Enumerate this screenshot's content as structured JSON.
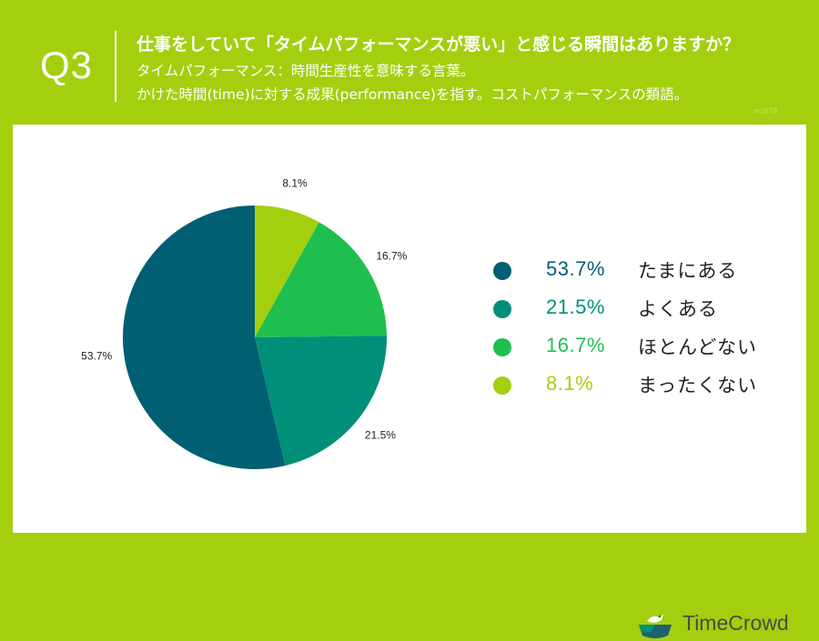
{
  "header": {
    "question_label": "Q3",
    "title": "仕事をしていて「タイムパフォーマンスが悪い」と感じる瞬間はありますか？",
    "subtitle_line1": "タイムパフォーマンス：時間生産性を意味する言葉。",
    "subtitle_line2": "かけた時間(time)に対する成果(performance)を指す。コストパフォーマンスの類語。",
    "sample_size": "n=979"
  },
  "colors": {
    "background": "#a4cf0e",
    "panel": "#ffffff",
    "header_text": "#ffffff"
  },
  "chart_data": {
    "type": "pie",
    "title": "",
    "start_angle_deg": 0,
    "direction": "clockwise",
    "slices": [
      {
        "label": "まったくない",
        "value": 8.1,
        "display": "8.1%",
        "color": "#a4cf0e"
      },
      {
        "label": "ほとんどない",
        "value": 16.7,
        "display": "16.7%",
        "color": "#1fbf4f"
      },
      {
        "label": "よくある",
        "value": 21.5,
        "display": "21.5%",
        "color": "#00907a"
      },
      {
        "label": "たまにある",
        "value": 53.7,
        "display": "53.7%",
        "color": "#005f73"
      }
    ],
    "legend": {
      "position": "right",
      "items": [
        {
          "pct": "53.7%",
          "label": "たまにある",
          "color": "#005f73"
        },
        {
          "pct": "21.5%",
          "label": "よくある",
          "color": "#00907a"
        },
        {
          "pct": "16.7%",
          "label": "ほとんどない",
          "color": "#1fbf4f"
        },
        {
          "pct": "8.1%",
          "label": "まったくない",
          "color": "#a4cf0e"
        }
      ]
    }
  },
  "brand": {
    "name": "TimeCrowd",
    "icon": "timecrowd-bird-logo-icon"
  }
}
